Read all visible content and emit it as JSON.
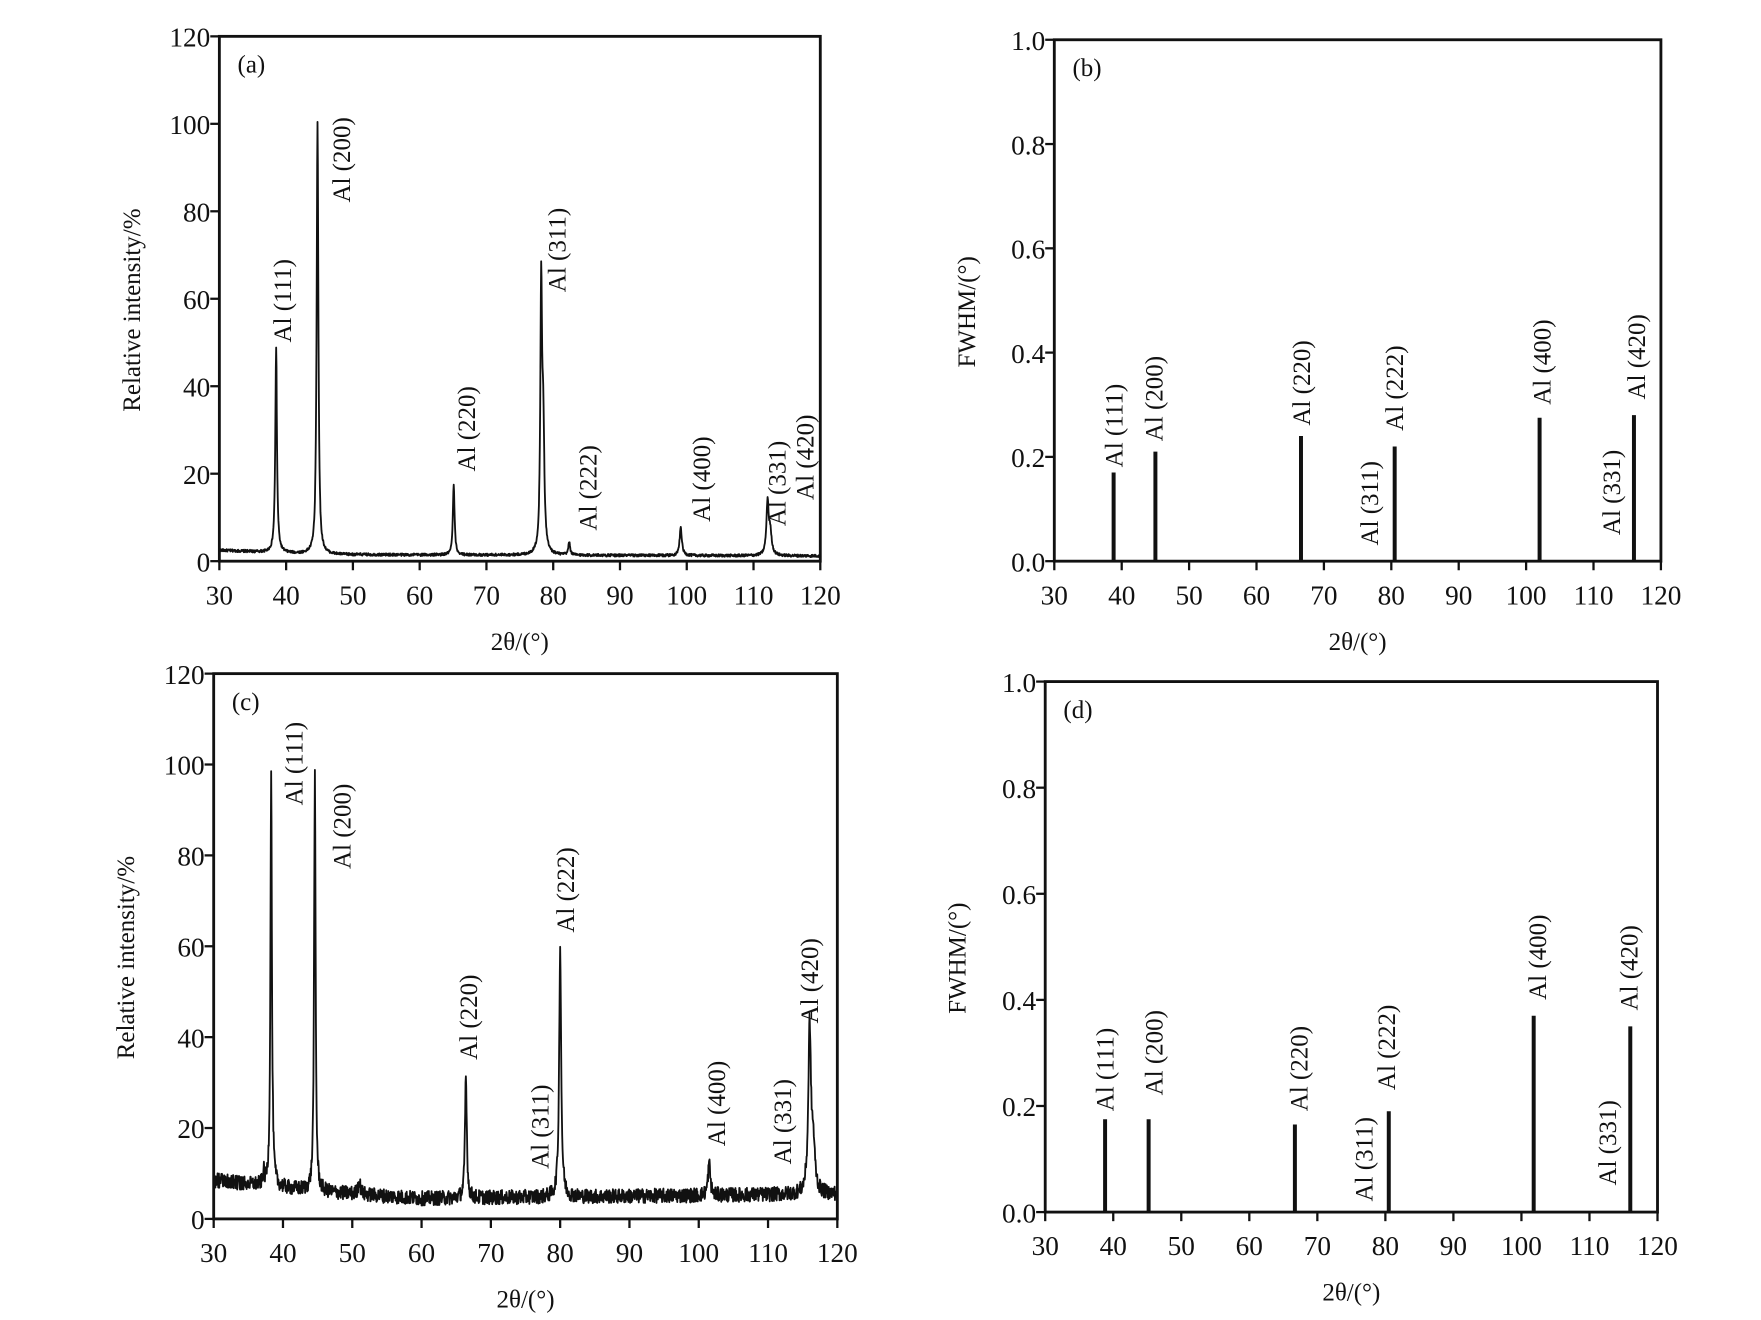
{
  "chart_data": [
    {
      "panel": "(a)",
      "type": "line",
      "xlabel": "2θ/(°)",
      "ylabel": "Relative intensity/%",
      "xlim": [
        30,
        120
      ],
      "ylim": [
        0,
        120
      ],
      "xticks": [
        30,
        40,
        50,
        60,
        70,
        80,
        90,
        100,
        110,
        120
      ],
      "yticks": [
        0,
        20,
        40,
        60,
        80,
        100,
        120
      ],
      "background": [
        [
          30,
          2.5
        ],
        [
          45,
          1.5
        ],
        [
          120,
          1.2
        ]
      ],
      "noise": 0.3,
      "peaks": [
        {
          "x": 38.5,
          "y": 47,
          "w": 0.3
        },
        {
          "x": 44.7,
          "y": 99,
          "w": 0.3
        },
        {
          "x": 65.1,
          "y": 16,
          "w": 0.3
        },
        {
          "x": 78.2,
          "y": 59,
          "w": 0.3
        },
        {
          "x": 78.5,
          "y": 27,
          "w": 0.4
        },
        {
          "x": 82.4,
          "y": 3,
          "w": 0.3
        },
        {
          "x": 99.1,
          "y": 6.5,
          "w": 0.4
        },
        {
          "x": 112.1,
          "y": 12,
          "w": 0.4
        },
        {
          "x": 112.5,
          "y": 5,
          "w": 0.5
        }
      ],
      "labels": [
        {
          "text": "Al (111)",
          "x": 39.4,
          "y": 50
        },
        {
          "text": "Al (200)",
          "x": 48.2,
          "y": 82
        },
        {
          "text": "Al (220)",
          "x": 66.9,
          "y": 20.5
        },
        {
          "text": "Al (311)",
          "x": 80.5,
          "y": 61.5
        },
        {
          "text": "Al (222)",
          "x": 85.1,
          "y": 7
        },
        {
          "text": "Al (400)",
          "x": 102.1,
          "y": 9
        },
        {
          "text": "Al (331)",
          "x": 113.4,
          "y": 8
        },
        {
          "text": "Al (420)",
          "x": 117.6,
          "y": 14
        }
      ]
    },
    {
      "panel": "(b)",
      "type": "bar",
      "xlabel": "2θ/(°)",
      "ylabel": "FWHM/(°)",
      "xlim": [
        30,
        120
      ],
      "ylim": [
        0,
        1.0
      ],
      "xticks": [
        30,
        40,
        50,
        60,
        70,
        80,
        90,
        100,
        110,
        120
      ],
      "yticks": [
        "0.0",
        "0.2",
        "0.4",
        "0.6",
        "0.8",
        "1.0"
      ],
      "bars": [
        {
          "x": 38.8,
          "y": 0.17
        },
        {
          "x": 45.0,
          "y": 0.21
        },
        {
          "x": 66.6,
          "y": 0.24
        },
        {
          "x": 80.5,
          "y": 0.22
        },
        {
          "x": 102.0,
          "y": 0.275
        },
        {
          "x": 116.0,
          "y": 0.28
        }
      ],
      "labels": [
        {
          "text": "Al (111)",
          "x": 38.8,
          "y": 0.18
        },
        {
          "text": "Al (200)",
          "x": 44.7,
          "y": 0.23
        },
        {
          "text": "Al (220)",
          "x": 66.6,
          "y": 0.26
        },
        {
          "text": "Al (311)",
          "x": 76.7,
          "y": 0.03
        },
        {
          "text": "Al (222)",
          "x": 80.4,
          "y": 0.25
        },
        {
          "text": "Al (400)",
          "x": 102.3,
          "y": 0.3
        },
        {
          "text": "Al (331)",
          "x": 112.6,
          "y": 0.05
        },
        {
          "text": "Al (420)",
          "x": 116.3,
          "y": 0.31
        }
      ]
    },
    {
      "panel": "(c)",
      "type": "line",
      "xlabel": "2θ/(°)",
      "ylabel": "Relative intensity/%",
      "xlim": [
        30,
        120
      ],
      "ylim": [
        0,
        120
      ],
      "xticks": [
        30,
        40,
        50,
        60,
        70,
        80,
        90,
        100,
        110,
        120
      ],
      "yticks": [
        0,
        20,
        40,
        60,
        80,
        100,
        120
      ],
      "background": [
        [
          30,
          8.5
        ],
        [
          45,
          6
        ],
        [
          60,
          4.5
        ],
        [
          120,
          5.5
        ]
      ],
      "noise": 1.6,
      "peaks": [
        {
          "x": 37.2,
          "y": 3,
          "w": 0.2
        },
        {
          "x": 38.3,
          "y": 92,
          "w": 0.25
        },
        {
          "x": 44.6,
          "y": 92,
          "w": 0.25
        },
        {
          "x": 51.0,
          "y": 3,
          "w": 0.4
        },
        {
          "x": 66.4,
          "y": 27,
          "w": 0.3
        },
        {
          "x": 80.0,
          "y": 55,
          "w": 0.35
        },
        {
          "x": 101.5,
          "y": 7,
          "w": 0.4
        },
        {
          "x": 116.0,
          "y": 36,
          "w": 0.45
        },
        {
          "x": 116.5,
          "y": 10,
          "w": 0.6
        }
      ],
      "labels": [
        {
          "text": "Al (111)",
          "x": 41.5,
          "y": 91
        },
        {
          "text": "Al (200)",
          "x": 48.4,
          "y": 77
        },
        {
          "text": "Al (220)",
          "x": 66.7,
          "y": 35
        },
        {
          "text": "Al (311)",
          "x": 77,
          "y": 11
        },
        {
          "text": "Al (222)",
          "x": 80.7,
          "y": 63
        },
        {
          "text": "Al (400)",
          "x": 102.5,
          "y": 16
        },
        {
          "text": "Al (331)",
          "x": 112,
          "y": 12
        },
        {
          "text": "Al (420)",
          "x": 115.9,
          "y": 43
        }
      ]
    },
    {
      "panel": "(d)",
      "type": "bar",
      "xlabel": "2θ/(°)",
      "ylabel": "FWHM/(°)",
      "xlim": [
        30,
        120
      ],
      "ylim": [
        0,
        1.0
      ],
      "xticks": [
        30,
        40,
        50,
        60,
        70,
        80,
        90,
        100,
        110,
        120
      ],
      "yticks": [
        "0.0",
        "0.2",
        "0.4",
        "0.6",
        "0.8",
        "1.0"
      ],
      "bars": [
        {
          "x": 38.8,
          "y": 0.175
        },
        {
          "x": 45.2,
          "y": 0.175
        },
        {
          "x": 66.7,
          "y": 0.165
        },
        {
          "x": 80.5,
          "y": 0.19
        },
        {
          "x": 101.8,
          "y": 0.37
        },
        {
          "x": 116.0,
          "y": 0.35
        }
      ],
      "labels": [
        {
          "text": "Al (111)",
          "x": 38.7,
          "y": 0.19
        },
        {
          "text": "Al (200)",
          "x": 45.9,
          "y": 0.22
        },
        {
          "text": "Al (220)",
          "x": 67.2,
          "y": 0.19
        },
        {
          "text": "Al (311)",
          "x": 76.8,
          "y": 0.02
        },
        {
          "text": "Al (222)",
          "x": 80.1,
          "y": 0.23
        },
        {
          "text": "Al (400)",
          "x": 102.3,
          "y": 0.4
        },
        {
          "text": "Al (331)",
          "x": 112.6,
          "y": 0.05
        },
        {
          "text": "Al (420)",
          "x": 115.7,
          "y": 0.38
        }
      ]
    }
  ]
}
